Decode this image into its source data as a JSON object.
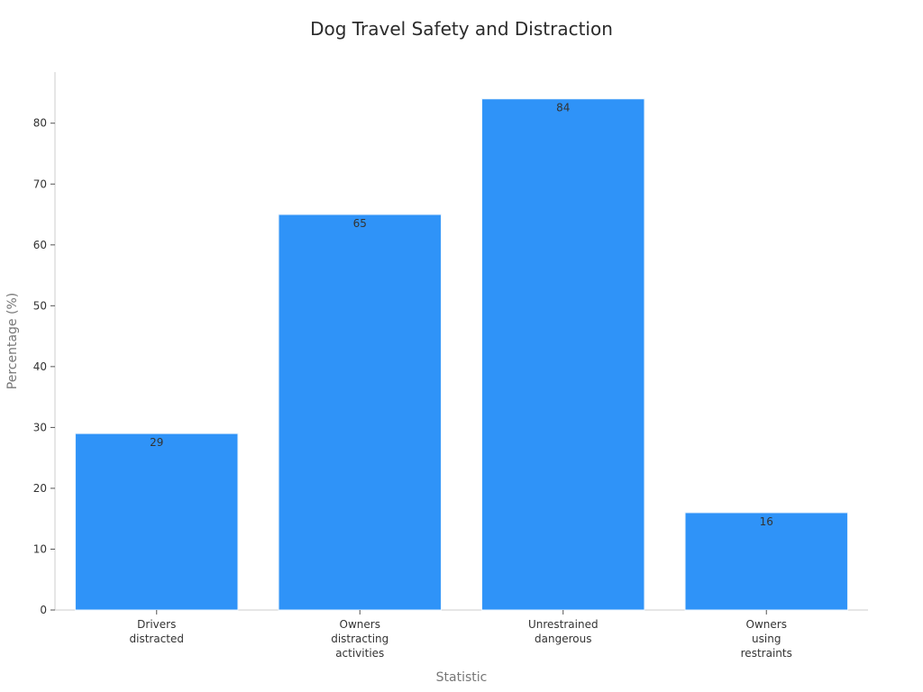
{
  "chart_data": {
    "type": "bar",
    "title": "Dog Travel Safety and Distraction",
    "xlabel": "Statistic",
    "ylabel": "Percentage (%)",
    "categories": [
      [
        "Drivers",
        "distracted"
      ],
      [
        "Owners",
        "distracting",
        "activities"
      ],
      [
        "Unrestrained",
        "dangerous"
      ],
      [
        "Owners",
        "using",
        "restraints"
      ]
    ],
    "values": [
      29,
      65,
      84,
      16
    ],
    "data_labels": [
      "29",
      "65",
      "84",
      "16"
    ],
    "ylim": [
      0,
      88.4
    ],
    "yticks": [
      0,
      10,
      20,
      30,
      40,
      50,
      60,
      70,
      80
    ],
    "grid": false,
    "legend": "none",
    "colors": {
      "bar": "#2f93f8",
      "bar_edge": "#e9f3fc",
      "axis": "#cccccc",
      "text": "#333333",
      "axis_label": "#777777"
    }
  }
}
